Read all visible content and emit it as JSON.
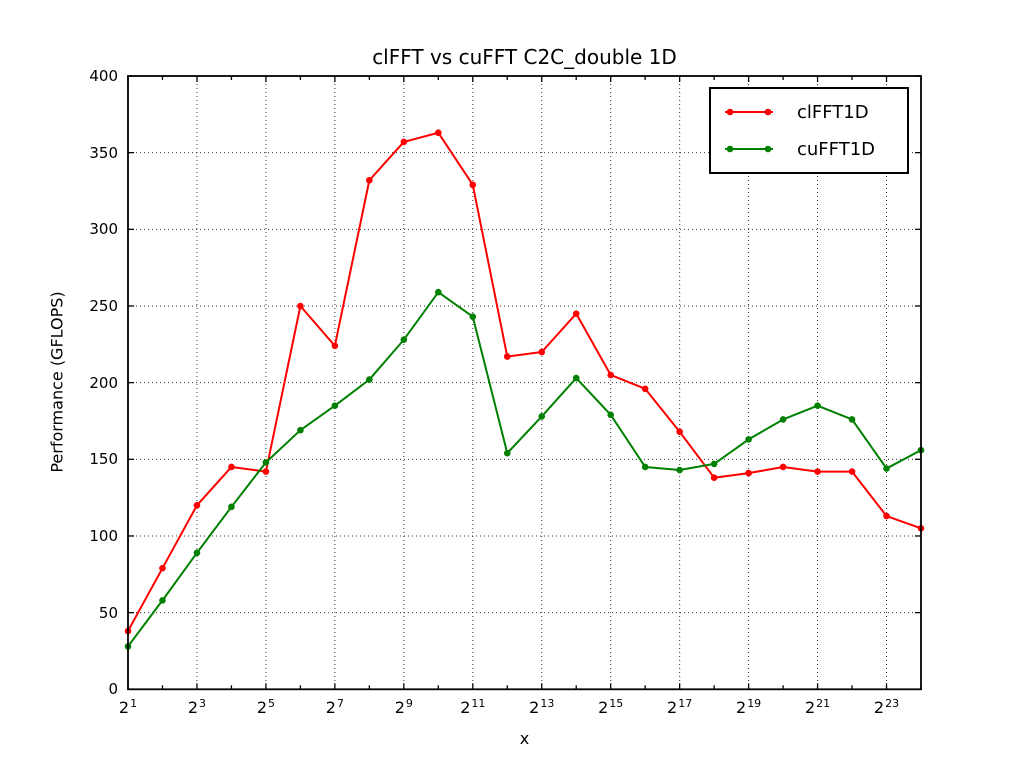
{
  "chart_data": {
    "type": "line",
    "title": "clFFT vs cuFFT C2C_double 1D",
    "xlabel": "x",
    "ylabel": "Performance (GFLOPS)",
    "x_scale": "log2",
    "x_exponents": [
      1,
      2,
      3,
      4,
      5,
      6,
      7,
      8,
      9,
      10,
      11,
      12,
      13,
      14,
      15,
      16,
      17,
      18,
      19,
      20,
      21,
      22,
      23,
      24
    ],
    "x_tick_base": "2",
    "x_tick_exponents": [
      1,
      3,
      5,
      7,
      9,
      11,
      13,
      15,
      17,
      19,
      21,
      23
    ],
    "ylim": [
      0,
      400
    ],
    "yticks": [
      0,
      50,
      100,
      150,
      200,
      250,
      300,
      350,
      400
    ],
    "grid": "dotted",
    "legend_position": "upper right",
    "background_color": "#ffffff",
    "axis_color": "#000000",
    "grid_color": "#333333",
    "series": [
      {
        "name": "clFFT1D",
        "color": "#ff0000",
        "values": [
          38,
          79,
          120,
          145,
          142,
          250,
          224,
          332,
          357,
          363,
          329,
          217,
          220,
          245,
          205,
          196,
          168,
          138,
          141,
          145,
          142,
          142,
          113,
          105
        ]
      },
      {
        "name": "cuFFT1D",
        "color": "#008000",
        "values": [
          28,
          58,
          89,
          119,
          148,
          169,
          185,
          202,
          228,
          259,
          243,
          154,
          178,
          203,
          179,
          145,
          143,
          147,
          163,
          176,
          185,
          176,
          144,
          156
        ]
      }
    ]
  }
}
